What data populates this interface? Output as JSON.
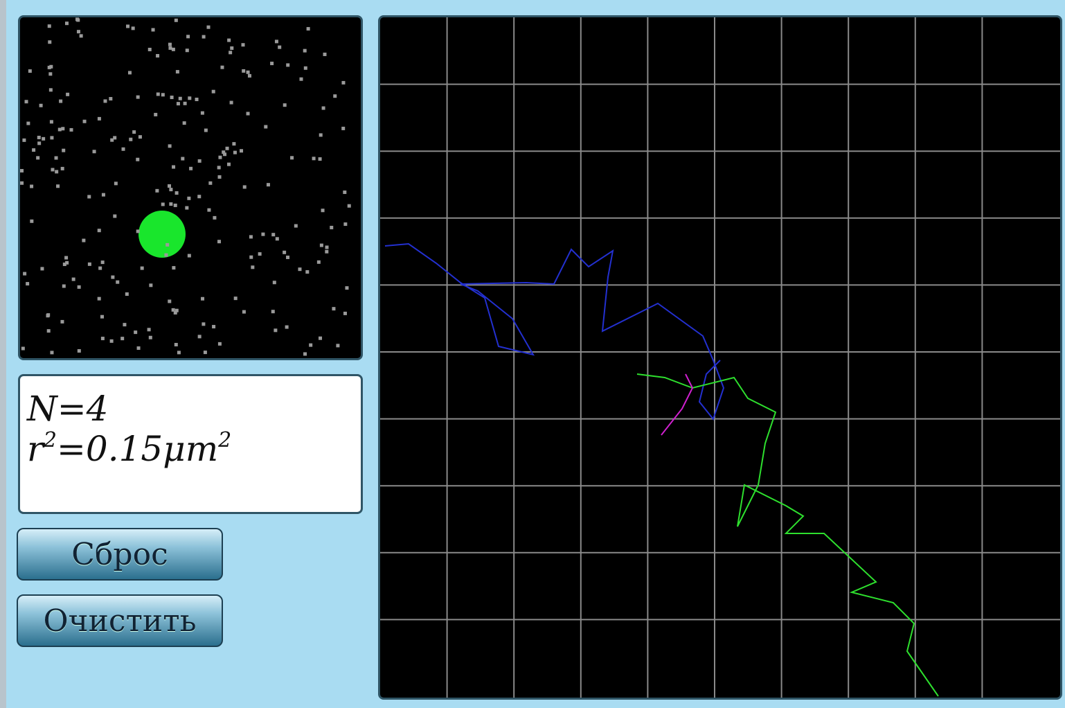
{
  "info": {
    "line1": "N=4",
    "line2": {
      "base": "r",
      "exp1": "2",
      "mid": "=0.15μm",
      "exp2": "2"
    }
  },
  "buttons": {
    "reset": "Сброс",
    "clear": "Очистить"
  }
}
